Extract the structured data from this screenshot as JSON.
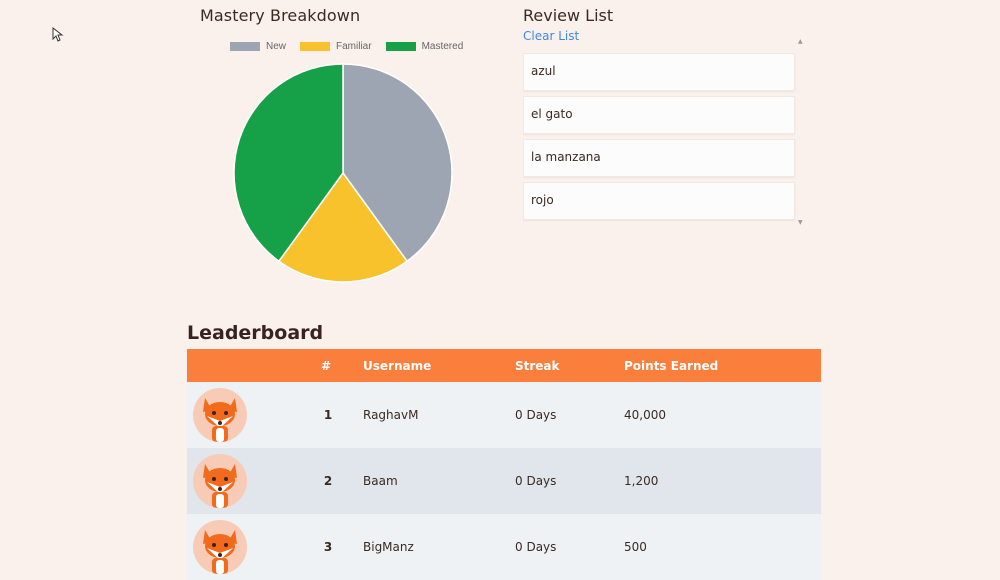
{
  "mastery": {
    "title": "Mastery Breakdown",
    "legend": [
      {
        "label": "New",
        "color": "#9ea5b2"
      },
      {
        "label": "Familiar",
        "color": "#f8c22d"
      },
      {
        "label": "Mastered",
        "color": "#16a148"
      }
    ]
  },
  "chart_data": {
    "type": "pie",
    "categories": [
      "New",
      "Familiar",
      "Mastered"
    ],
    "values": [
      2,
      1,
      2
    ],
    "colors": [
      "#9ea5b2",
      "#f8c22d",
      "#16a148"
    ]
  },
  "review": {
    "title": "Review List",
    "clear_label": "Clear List",
    "items": [
      "azul",
      "el gato",
      "la manzana",
      "rojo"
    ]
  },
  "leaderboard": {
    "title": "Leaderboard",
    "headers": {
      "rank": "#",
      "username": "Username",
      "streak": "Streak",
      "points": "Points Earned"
    },
    "rows": [
      {
        "rank": "1",
        "username": "RaghavM",
        "streak": "0 Days",
        "points": "40,000",
        "avatar": "fox-icon"
      },
      {
        "rank": "2",
        "username": "Baam",
        "streak": "0 Days",
        "points": "1,200",
        "avatar": "fox-icon"
      },
      {
        "rank": "3",
        "username": "BigManz",
        "streak": "0 Days",
        "points": "500",
        "avatar": "fox-icon"
      }
    ]
  }
}
